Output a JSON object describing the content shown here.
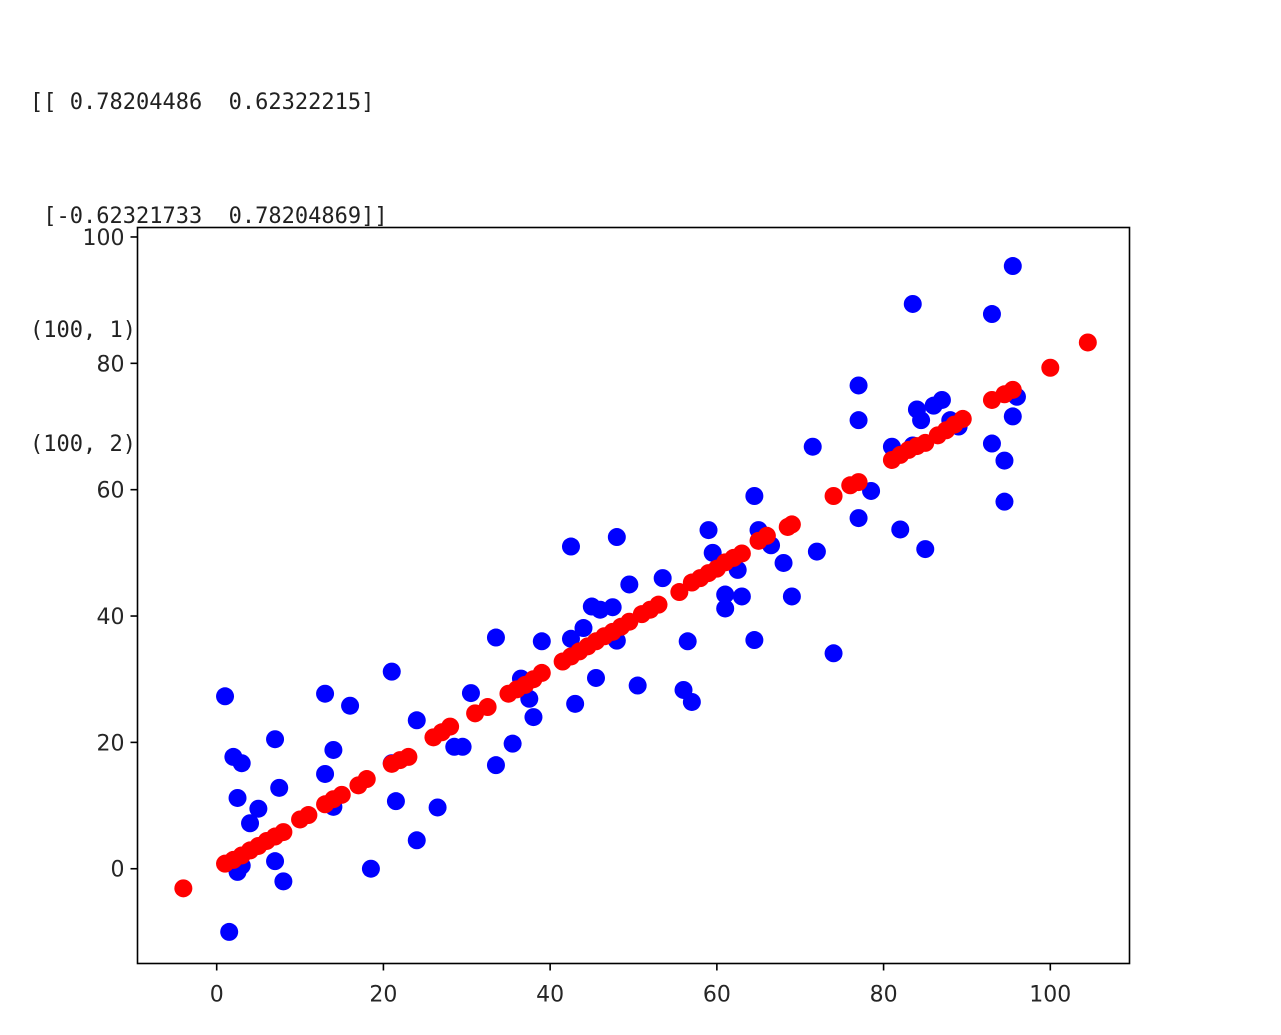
{
  "output": {
    "lines": [
      "[[ 0.78204486  0.62322215]",
      " [-0.62321733  0.78204869]]",
      "(100, 1)",
      "(100, 2)"
    ]
  },
  "chart_data": {
    "type": "scatter",
    "title": "",
    "xlabel": "",
    "ylabel": "",
    "xlim": [
      -9.5,
      109.5
    ],
    "ylim": [
      -15,
      101.5
    ],
    "xticks": [
      0,
      20,
      40,
      60,
      80,
      100
    ],
    "yticks": [
      0,
      20,
      40,
      60,
      80,
      100
    ],
    "grid": false,
    "series": [
      {
        "color": "#0000ff",
        "points": [
          [
            1,
            27.3
          ],
          [
            2,
            17.7
          ],
          [
            3,
            16.7
          ],
          [
            2.5,
            11.2
          ],
          [
            4,
            7.2
          ],
          [
            5,
            9.5
          ],
          [
            7,
            20.5
          ],
          [
            7.5,
            12.8
          ],
          [
            7,
            1.2
          ],
          [
            8,
            -2
          ],
          [
            1.5,
            -10
          ],
          [
            2.5,
            -0.5
          ],
          [
            3,
            0.5
          ],
          [
            13,
            27.7
          ],
          [
            13,
            15
          ],
          [
            14,
            18.8
          ],
          [
            14,
            9.8
          ],
          [
            16,
            25.8
          ],
          [
            21,
            31.2
          ],
          [
            21,
            16.7
          ],
          [
            21.5,
            10.7
          ],
          [
            18.5,
            0
          ],
          [
            24,
            23.5
          ],
          [
            24,
            4.5
          ],
          [
            26.5,
            9.7
          ],
          [
            28.5,
            19.3
          ],
          [
            29.5,
            19.3
          ],
          [
            30.5,
            27.8
          ],
          [
            33.5,
            36.6
          ],
          [
            33.5,
            16.4
          ],
          [
            35.5,
            19.8
          ],
          [
            36.5,
            30.1
          ],
          [
            37.5,
            26.9
          ],
          [
            38,
            24
          ],
          [
            39,
            36
          ],
          [
            42.5,
            51
          ],
          [
            42.5,
            36.4
          ],
          [
            43,
            26.1
          ],
          [
            44,
            38.1
          ],
          [
            45,
            41.5
          ],
          [
            45.5,
            30.2
          ],
          [
            46,
            41
          ],
          [
            47.5,
            41.4
          ],
          [
            48,
            52.5
          ],
          [
            48,
            36.1
          ],
          [
            49.5,
            45
          ],
          [
            50.5,
            29
          ],
          [
            53.5,
            46
          ],
          [
            56,
            28.3
          ],
          [
            56.5,
            36
          ],
          [
            57,
            26.4
          ],
          [
            59,
            53.6
          ],
          [
            59.5,
            50
          ],
          [
            61,
            41.2
          ],
          [
            61,
            43.4
          ],
          [
            62.5,
            47.3
          ],
          [
            63,
            43.1
          ],
          [
            64.5,
            59
          ],
          [
            64.5,
            36.2
          ],
          [
            65,
            53.6
          ],
          [
            66.5,
            51.2
          ],
          [
            68,
            48.4
          ],
          [
            69,
            43.1
          ],
          [
            71.5,
            66.8
          ],
          [
            72,
            50.2
          ],
          [
            74,
            34.1
          ],
          [
            77,
            76.5
          ],
          [
            77,
            71
          ],
          [
            77,
            55.5
          ],
          [
            78.5,
            59.8
          ],
          [
            81,
            66.8
          ],
          [
            82,
            53.7
          ],
          [
            83.5,
            89.4
          ],
          [
            83.5,
            67
          ],
          [
            84,
            72.7
          ],
          [
            84.5,
            71
          ],
          [
            85,
            50.6
          ],
          [
            86,
            73.3
          ],
          [
            87,
            74.2
          ],
          [
            88,
            71
          ],
          [
            89,
            70
          ],
          [
            93,
            87.8
          ],
          [
            93,
            67.3
          ],
          [
            94.5,
            64.6
          ],
          [
            94.5,
            58.1
          ],
          [
            95.5,
            95.4
          ],
          [
            95.5,
            71.6
          ],
          [
            96,
            74.7
          ]
        ]
      },
      {
        "color": "#ff0000",
        "points": [
          [
            -4,
            -3.1
          ],
          [
            1,
            0.8
          ],
          [
            2,
            1.4
          ],
          [
            3,
            2.1
          ],
          [
            4,
            2.9
          ],
          [
            5,
            3.6
          ],
          [
            6,
            4.4
          ],
          [
            7,
            5.1
          ],
          [
            8,
            5.8
          ],
          [
            10,
            7.8
          ],
          [
            11,
            8.5
          ],
          [
            13,
            10.2
          ],
          [
            14,
            11
          ],
          [
            15,
            11.7
          ],
          [
            17,
            13.2
          ],
          [
            18,
            14.2
          ],
          [
            21,
            16.6
          ],
          [
            22,
            17.2
          ],
          [
            23,
            17.7
          ],
          [
            26,
            20.8
          ],
          [
            27,
            21.6
          ],
          [
            28,
            22.5
          ],
          [
            31,
            24.6
          ],
          [
            32.5,
            25.6
          ],
          [
            35,
            27.7
          ],
          [
            36,
            28.4
          ],
          [
            37,
            29.1
          ],
          [
            38,
            30
          ],
          [
            39,
            31
          ],
          [
            41.5,
            32.8
          ],
          [
            42.5,
            33.6
          ],
          [
            43.5,
            34.4
          ],
          [
            44.5,
            35.2
          ],
          [
            45.5,
            36
          ],
          [
            46.5,
            36.8
          ],
          [
            47.5,
            37.5
          ],
          [
            48.5,
            38.3
          ],
          [
            49.5,
            39.1
          ],
          [
            51,
            40.3
          ],
          [
            52,
            41
          ],
          [
            53,
            41.8
          ],
          [
            55.5,
            43.8
          ],
          [
            57,
            45.3
          ],
          [
            58,
            46
          ],
          [
            59,
            46.8
          ],
          [
            60,
            47.5
          ],
          [
            61,
            48.5
          ],
          [
            62,
            49.2
          ],
          [
            63,
            49.9
          ],
          [
            65,
            51.9
          ],
          [
            66,
            52.7
          ],
          [
            68.5,
            54.1
          ],
          [
            69,
            54.5
          ],
          [
            74,
            59
          ],
          [
            76,
            60.7
          ],
          [
            77,
            61.2
          ],
          [
            81,
            64.7
          ],
          [
            82,
            65.5
          ],
          [
            83,
            66.3
          ],
          [
            84,
            66.9
          ],
          [
            85,
            67.4
          ],
          [
            86.5,
            68.6
          ],
          [
            87.5,
            69.4
          ],
          [
            88.5,
            70.3
          ],
          [
            89.5,
            71.2
          ],
          [
            93,
            74.2
          ],
          [
            94.5,
            75.1
          ],
          [
            95.5,
            75.8
          ],
          [
            100,
            79.3
          ],
          [
            104.5,
            83.3
          ]
        ]
      }
    ]
  }
}
